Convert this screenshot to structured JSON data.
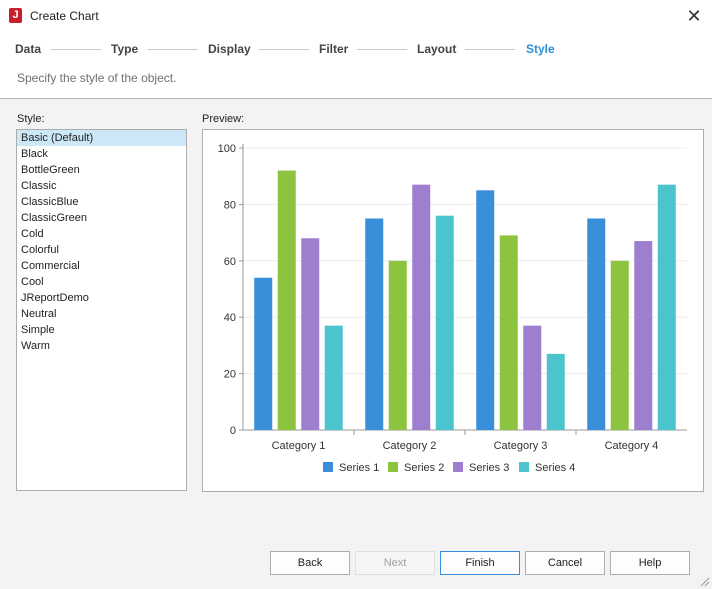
{
  "window": {
    "title": "Create Chart",
    "icon": "j-logo-icon"
  },
  "steps": [
    {
      "label": "Data",
      "active": false
    },
    {
      "label": "Type",
      "active": false
    },
    {
      "label": "Display",
      "active": false
    },
    {
      "label": "Filter",
      "active": false
    },
    {
      "label": "Layout",
      "active": false
    },
    {
      "label": "Style",
      "active": true
    }
  ],
  "subtitle": "Specify the style of the object.",
  "style_panel": {
    "label": "Style:",
    "items": [
      "Basic (Default)",
      "Black",
      "BottleGreen",
      "Classic",
      "ClassicBlue",
      "ClassicGreen",
      "Cold",
      "Colorful",
      "Commercial",
      "Cool",
      "JReportDemo",
      "Neutral",
      "Simple",
      "Warm"
    ],
    "selected": "Basic (Default)"
  },
  "preview_panel": {
    "label": "Preview:"
  },
  "chart_data": {
    "type": "bar",
    "categories": [
      "Category 1",
      "Category 2",
      "Category 3",
      "Category 4"
    ],
    "series": [
      {
        "name": "Series 1",
        "color": "#3a8fdb",
        "values": [
          54,
          75,
          85,
          75
        ]
      },
      {
        "name": "Series 2",
        "color": "#8cc43f",
        "values": [
          92,
          60,
          69,
          60
        ]
      },
      {
        "name": "Series 3",
        "color": "#9e7fcf",
        "values": [
          68,
          87,
          37,
          67
        ]
      },
      {
        "name": "Series 4",
        "color": "#4cc4cd",
        "values": [
          37,
          76,
          27,
          87
        ]
      }
    ],
    "ylim": [
      0,
      100
    ],
    "yticks": [
      0,
      20,
      40,
      60,
      80,
      100
    ],
    "grid": true,
    "legend": "bottom"
  },
  "buttons": {
    "back": "Back",
    "next": "Next",
    "finish": "Finish",
    "cancel": "Cancel",
    "help": "Help"
  }
}
